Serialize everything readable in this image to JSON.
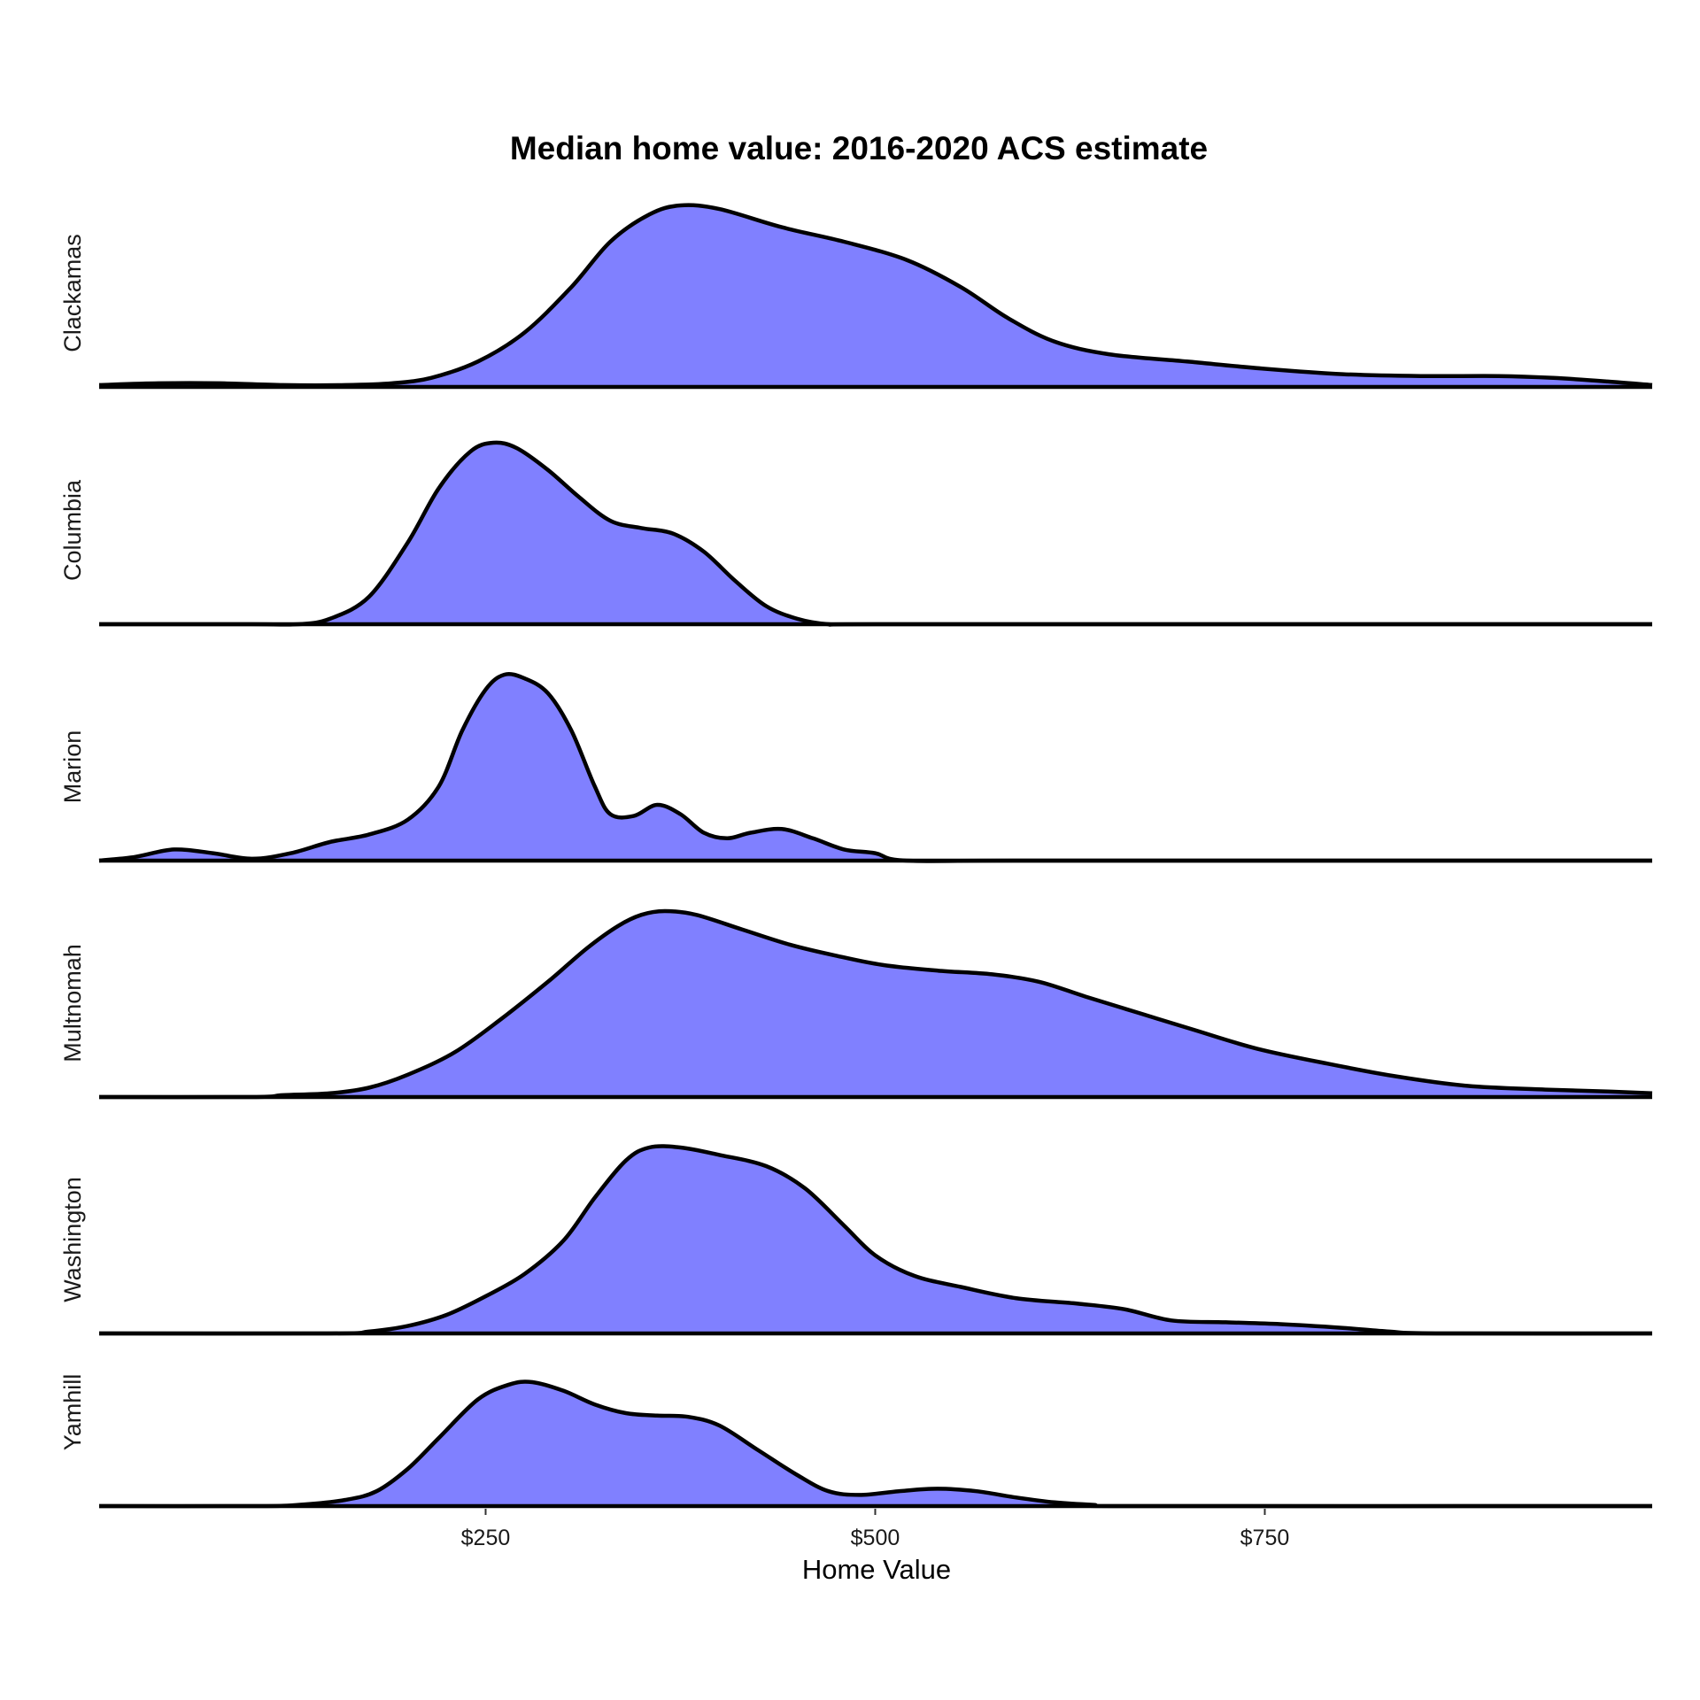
{
  "chart_data": {
    "type": "area",
    "subtype": "ridgeline-density",
    "title": "Median home value: 2016-2020 ACS estimate",
    "xlabel": "Home Value",
    "ylabel": "",
    "xlim": [
      0,
      1000
    ],
    "x_ticks": [
      250,
      500,
      750
    ],
    "x_tick_labels": [
      "$250",
      "$500",
      "$750"
    ],
    "fill_color": "#8080FF",
    "line_color": "#000000",
    "series": [
      {
        "name": "Clackamas",
        "points": [
          [
            0,
            0.01
          ],
          [
            40,
            0.02
          ],
          [
            80,
            0.02
          ],
          [
            120,
            0.01
          ],
          [
            160,
            0.01
          ],
          [
            190,
            0.02
          ],
          [
            215,
            0.05
          ],
          [
            245,
            0.14
          ],
          [
            275,
            0.3
          ],
          [
            305,
            0.55
          ],
          [
            330,
            0.8
          ],
          [
            355,
            0.95
          ],
          [
            375,
            1.0
          ],
          [
            400,
            0.98
          ],
          [
            440,
            0.88
          ],
          [
            480,
            0.8
          ],
          [
            520,
            0.7
          ],
          [
            555,
            0.55
          ],
          [
            585,
            0.38
          ],
          [
            615,
            0.25
          ],
          [
            650,
            0.18
          ],
          [
            700,
            0.14
          ],
          [
            750,
            0.1
          ],
          [
            800,
            0.07
          ],
          [
            850,
            0.06
          ],
          [
            900,
            0.06
          ],
          [
            935,
            0.05
          ],
          [
            970,
            0.03
          ],
          [
            1000,
            0.01
          ]
        ]
      },
      {
        "name": "Columbia",
        "points": [
          [
            0,
            0
          ],
          [
            100,
            0
          ],
          [
            130,
            0
          ],
          [
            150,
            0.03
          ],
          [
            175,
            0.15
          ],
          [
            200,
            0.45
          ],
          [
            220,
            0.75
          ],
          [
            240,
            0.95
          ],
          [
            255,
            1.0
          ],
          [
            270,
            0.97
          ],
          [
            290,
            0.85
          ],
          [
            310,
            0.7
          ],
          [
            330,
            0.57
          ],
          [
            350,
            0.53
          ],
          [
            370,
            0.5
          ],
          [
            390,
            0.4
          ],
          [
            410,
            0.24
          ],
          [
            430,
            0.1
          ],
          [
            450,
            0.03
          ],
          [
            470,
            0
          ],
          [
            500,
            0
          ],
          [
            750,
            0
          ],
          [
            1000,
            0
          ]
        ]
      },
      {
        "name": "Marion",
        "points": [
          [
            0,
            0
          ],
          [
            25,
            0.02
          ],
          [
            50,
            0.06
          ],
          [
            75,
            0.04
          ],
          [
            100,
            0.01
          ],
          [
            125,
            0.04
          ],
          [
            150,
            0.1
          ],
          [
            175,
            0.14
          ],
          [
            200,
            0.22
          ],
          [
            220,
            0.4
          ],
          [
            235,
            0.7
          ],
          [
            250,
            0.92
          ],
          [
            262,
            1.0
          ],
          [
            275,
            0.98
          ],
          [
            290,
            0.9
          ],
          [
            305,
            0.7
          ],
          [
            320,
            0.4
          ],
          [
            330,
            0.25
          ],
          [
            345,
            0.24
          ],
          [
            360,
            0.3
          ],
          [
            375,
            0.25
          ],
          [
            390,
            0.15
          ],
          [
            405,
            0.12
          ],
          [
            420,
            0.15
          ],
          [
            440,
            0.17
          ],
          [
            460,
            0.12
          ],
          [
            480,
            0.06
          ],
          [
            500,
            0.04
          ],
          [
            520,
            0
          ],
          [
            600,
            0
          ],
          [
            1000,
            0
          ]
        ]
      },
      {
        "name": "Multnomah",
        "points": [
          [
            0,
            0
          ],
          [
            100,
            0
          ],
          [
            120,
            0.01
          ],
          [
            150,
            0.02
          ],
          [
            175,
            0.05
          ],
          [
            200,
            0.12
          ],
          [
            230,
            0.24
          ],
          [
            260,
            0.42
          ],
          [
            290,
            0.62
          ],
          [
            315,
            0.8
          ],
          [
            335,
            0.92
          ],
          [
            350,
            0.98
          ],
          [
            365,
            1.0
          ],
          [
            385,
            0.98
          ],
          [
            415,
            0.9
          ],
          [
            445,
            0.82
          ],
          [
            475,
            0.76
          ],
          [
            505,
            0.71
          ],
          [
            540,
            0.68
          ],
          [
            575,
            0.66
          ],
          [
            605,
            0.62
          ],
          [
            635,
            0.54
          ],
          [
            670,
            0.45
          ],
          [
            705,
            0.36
          ],
          [
            745,
            0.26
          ],
          [
            790,
            0.18
          ],
          [
            835,
            0.11
          ],
          [
            880,
            0.06
          ],
          [
            930,
            0.04
          ],
          [
            970,
            0.03
          ],
          [
            1000,
            0.02
          ]
        ]
      },
      {
        "name": "Washington",
        "points": [
          [
            0,
            0
          ],
          [
            150,
            0
          ],
          [
            175,
            0.01
          ],
          [
            200,
            0.04
          ],
          [
            225,
            0.1
          ],
          [
            250,
            0.2
          ],
          [
            275,
            0.32
          ],
          [
            300,
            0.5
          ],
          [
            320,
            0.73
          ],
          [
            340,
            0.93
          ],
          [
            355,
            1.0
          ],
          [
            375,
            1.0
          ],
          [
            400,
            0.96
          ],
          [
            430,
            0.9
          ],
          [
            455,
            0.78
          ],
          [
            480,
            0.58
          ],
          [
            500,
            0.42
          ],
          [
            525,
            0.31
          ],
          [
            555,
            0.25
          ],
          [
            590,
            0.19
          ],
          [
            630,
            0.16
          ],
          [
            660,
            0.13
          ],
          [
            690,
            0.07
          ],
          [
            725,
            0.06
          ],
          [
            760,
            0.05
          ],
          [
            800,
            0.03
          ],
          [
            830,
            0.01
          ],
          [
            860,
            0
          ],
          [
            1000,
            0
          ]
        ]
      },
      {
        "name": "Yamhill",
        "points": [
          [
            0,
            0
          ],
          [
            100,
            0
          ],
          [
            130,
            0.01
          ],
          [
            160,
            0.05
          ],
          [
            180,
            0.12
          ],
          [
            200,
            0.3
          ],
          [
            220,
            0.55
          ],
          [
            245,
            0.86
          ],
          [
            265,
            0.98
          ],
          [
            280,
            1.0
          ],
          [
            300,
            0.93
          ],
          [
            320,
            0.82
          ],
          [
            340,
            0.75
          ],
          [
            360,
            0.73
          ],
          [
            380,
            0.72
          ],
          [
            400,
            0.65
          ],
          [
            425,
            0.45
          ],
          [
            450,
            0.25
          ],
          [
            470,
            0.12
          ],
          [
            490,
            0.09
          ],
          [
            515,
            0.12
          ],
          [
            540,
            0.14
          ],
          [
            565,
            0.12
          ],
          [
            590,
            0.07
          ],
          [
            615,
            0.03
          ],
          [
            640,
            0.01
          ],
          [
            670,
            0
          ],
          [
            1000,
            0
          ]
        ]
      }
    ]
  }
}
